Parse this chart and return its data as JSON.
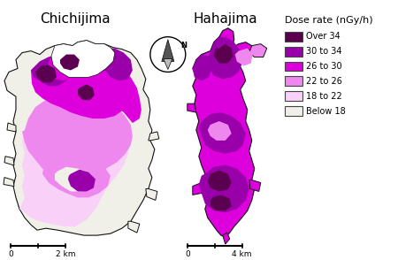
{
  "title_left": "Chichijima",
  "title_right": "Hahajima",
  "legend_title": "Dose rate (nGy/h)",
  "legend_labels": [
    "Over 34",
    "30 to 34",
    "26 to 30",
    "22 to 26",
    "18 to 22",
    "Below 18"
  ],
  "legend_colors": [
    "#5b0050",
    "#9900aa",
    "#dd00dd",
    "#ee88ee",
    "#f8d0f8",
    "#f0f0e8"
  ],
  "background_color": "#ffffff",
  "map_outline_color": "#111111",
  "scale_left": "2 km",
  "scale_right": "4 km"
}
